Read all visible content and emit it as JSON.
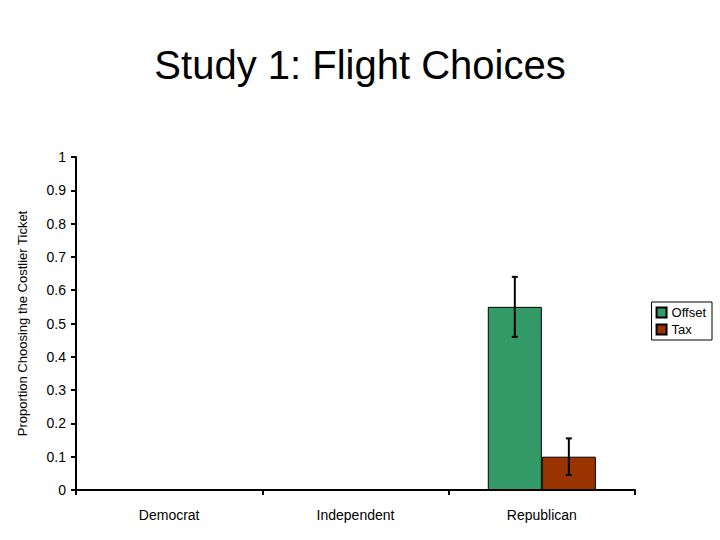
{
  "chart_data": {
    "type": "bar",
    "title": "Study 1: Flight Choices",
    "y_label": "Proportion Choosing the Costlier Ticket",
    "categories": [
      "Democrat",
      "Independent",
      "Republican"
    ],
    "series": [
      {
        "name": "Offset",
        "color": "#339966",
        "values": [
          null,
          null,
          0.55
        ],
        "errors": [
          null,
          null,
          0.09
        ]
      },
      {
        "name": "Tax",
        "color": "#993300",
        "values": [
          null,
          null,
          0.1
        ],
        "errors": [
          null,
          null,
          0.055
        ]
      }
    ],
    "ylim": [
      0,
      1
    ],
    "yticks": [
      0,
      0.1,
      0.2,
      0.3,
      0.4,
      0.5,
      0.6,
      0.7,
      0.8,
      0.9,
      1
    ],
    "grid": false,
    "legend": "right"
  }
}
